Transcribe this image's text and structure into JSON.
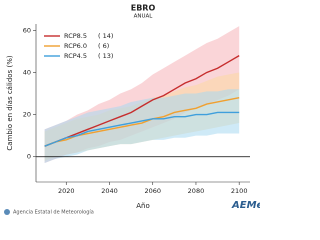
{
  "chart_data": {
    "type": "line",
    "title": "EBRO",
    "subtitle": "ANUAL",
    "x_label": "Año",
    "y_label": "Cambio en días cálidos (%)",
    "footer": "Agencia Estatal de Meteorología",
    "logo": "AEMet",
    "x": [
      2010,
      2015,
      2020,
      2025,
      2030,
      2035,
      2040,
      2045,
      2050,
      2055,
      2060,
      2065,
      2070,
      2075,
      2080,
      2085,
      2090,
      2095,
      2100
    ],
    "xlim": [
      2006,
      2105
    ],
    "xticks": [
      2020,
      2040,
      2060,
      2080,
      2100
    ],
    "ylim": [
      -12,
      63
    ],
    "yticks": [
      0,
      20,
      40,
      60
    ],
    "zero_line": true,
    "legend": "upper-left",
    "series": [
      {
        "name": "RCP8.5",
        "models": "( 14)",
        "color": "#c62d2d",
        "band_color": "#f5b3b8",
        "values": [
          5,
          7,
          9,
          11,
          13,
          15,
          17,
          19,
          21,
          24,
          27,
          29,
          32,
          35,
          37,
          40,
          42,
          45,
          48
        ],
        "lower": [
          -3,
          -1,
          1,
          2,
          4,
          5,
          7,
          8,
          10,
          12,
          14,
          16,
          18,
          21,
          23,
          25,
          27,
          29,
          32
        ],
        "upper": [
          13,
          15,
          17,
          20,
          22,
          25,
          27,
          30,
          32,
          35,
          39,
          42,
          45,
          48,
          51,
          54,
          56,
          59,
          62
        ]
      },
      {
        "name": "RCP6.0",
        "models": "( 6)",
        "color": "#f0a030",
        "band_color": "#fcd9a3",
        "values": [
          5,
          7,
          8,
          10,
          11,
          12,
          13,
          14,
          15,
          16,
          18,
          19,
          21,
          22,
          23,
          25,
          26,
          27,
          28
        ],
        "lower": [
          -2,
          0,
          1,
          2,
          3,
          4,
          5,
          6,
          6,
          7,
          8,
          9,
          10,
          11,
          12,
          13,
          14,
          15,
          16
        ],
        "upper": [
          12,
          14,
          16,
          18,
          19,
          20,
          22,
          23,
          24,
          26,
          28,
          29,
          31,
          33,
          34,
          36,
          38,
          39,
          40
        ]
      },
      {
        "name": "RCP4.5",
        "models": "( 13)",
        "color": "#3f9fdc",
        "band_color": "#a8d8f0",
        "values": [
          5,
          7,
          9,
          10,
          12,
          13,
          14,
          15,
          16,
          17,
          18,
          18,
          19,
          19,
          20,
          20,
          21,
          21,
          21
        ],
        "lower": [
          -3,
          -1,
          0,
          1,
          3,
          4,
          5,
          6,
          6,
          7,
          8,
          8,
          9,
          9,
          10,
          10,
          11,
          11,
          11
        ],
        "upper": [
          13,
          15,
          17,
          19,
          21,
          22,
          23,
          24,
          26,
          27,
          28,
          28,
          29,
          30,
          30,
          31,
          31,
          32,
          32
        ]
      }
    ]
  }
}
